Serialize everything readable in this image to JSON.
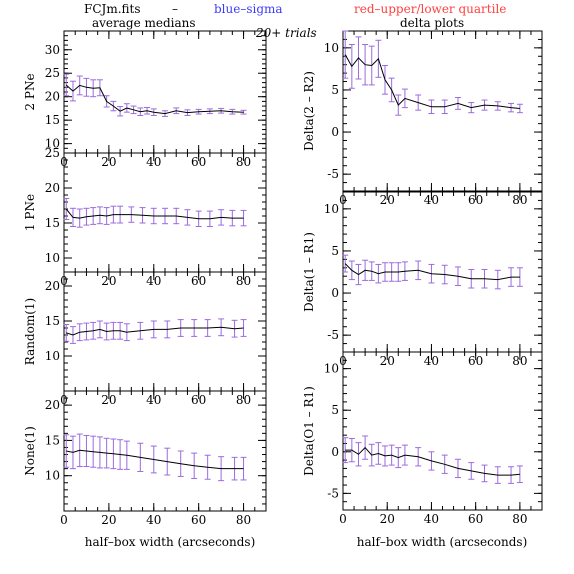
{
  "header": {
    "filename": "FCJm.fits",
    "dash": "–",
    "legend_blue": "blue–sigma",
    "legend_red": "red–upper/lower quartile",
    "left_title": "average medians",
    "trials": "20+ trials",
    "right_title": "delta plots"
  },
  "colors": {
    "line": "#000000",
    "error_bar": "#9b6bde",
    "blue": "#3b3bff",
    "red": "#ff4040"
  },
  "chart_data": [
    {
      "type": "line",
      "ylabel": "2 PNe",
      "xlim": [
        0,
        90
      ],
      "ylim": [
        8,
        34
      ],
      "yticks": [
        10,
        15,
        20,
        25,
        30
      ],
      "xticks": [
        0,
        20,
        40,
        60,
        80
      ],
      "x": [
        1,
        4,
        7,
        10,
        13,
        16,
        19,
        22,
        25,
        28,
        31,
        34,
        37,
        40,
        45,
        50,
        55,
        60,
        65,
        70,
        75,
        80
      ],
      "values": [
        22.5,
        21.2,
        22.4,
        22.0,
        21.8,
        21.9,
        19.0,
        18.0,
        16.9,
        17.6,
        17.2,
        16.8,
        17.0,
        16.7,
        16.4,
        17.0,
        16.6,
        16.8,
        16.9,
        17.0,
        16.8,
        16.7
      ],
      "errors": [
        2.3,
        2.1,
        2.0,
        1.9,
        1.8,
        1.7,
        1.2,
        1.0,
        1.0,
        0.9,
        0.8,
        0.8,
        0.7,
        0.7,
        0.6,
        0.6,
        0.6,
        0.5,
        0.5,
        0.5,
        0.5,
        0.4
      ]
    },
    {
      "type": "line",
      "ylabel": "Delta(2 – R2)",
      "xlim": [
        0,
        90
      ],
      "ylim": [
        -7,
        12
      ],
      "yticks": [
        -5,
        0,
        5,
        10
      ],
      "xticks": [
        0,
        20,
        40,
        60,
        80
      ],
      "x": [
        1,
        4,
        7,
        10,
        13,
        16,
        19,
        22,
        25,
        28,
        34,
        40,
        46,
        52,
        58,
        64,
        70,
        76,
        80
      ],
      "values": [
        9.2,
        7.8,
        8.8,
        8.0,
        7.9,
        8.7,
        6.2,
        5.0,
        3.2,
        4.0,
        3.5,
        3.0,
        3.0,
        3.4,
        2.9,
        3.2,
        3.1,
        2.9,
        2.8
      ],
      "errors": [
        2.8,
        2.6,
        2.5,
        2.4,
        2.3,
        2.2,
        1.7,
        1.4,
        1.2,
        1.1,
        0.9,
        0.8,
        0.8,
        0.7,
        0.6,
        0.6,
        0.5,
        0.5,
        0.5
      ]
    },
    {
      "type": "line",
      "ylabel": "1 PNe",
      "xlim": [
        0,
        90
      ],
      "ylim": [
        8,
        25
      ],
      "yticks": [
        10,
        15,
        20,
        25
      ],
      "xticks": [
        0,
        20,
        40,
        60,
        80
      ],
      "x": [
        1,
        4,
        7,
        10,
        13,
        16,
        19,
        22,
        25,
        30,
        35,
        40,
        45,
        50,
        55,
        60,
        65,
        70,
        75,
        80
      ],
      "values": [
        17.0,
        15.8,
        15.7,
        15.9,
        16.0,
        16.1,
        16.0,
        16.2,
        16.2,
        16.2,
        16.1,
        16.0,
        16.0,
        16.0,
        15.8,
        15.6,
        15.6,
        15.8,
        15.7,
        15.7
      ],
      "errors": [
        1.5,
        1.3,
        1.3,
        1.2,
        1.2,
        1.2,
        1.2,
        1.2,
        1.2,
        1.1,
        1.1,
        1.1,
        1.1,
        1.1,
        1.1,
        1.1,
        1.1,
        1.1,
        1.1,
        1.1
      ]
    },
    {
      "type": "line",
      "ylabel": "Delta(1 – R1)",
      "xlim": [
        0,
        90
      ],
      "ylim": [
        -7,
        12
      ],
      "yticks": [
        -5,
        0,
        5,
        10
      ],
      "xticks": [
        0,
        20,
        40,
        60,
        80
      ],
      "x": [
        1,
        4,
        7,
        10,
        13,
        16,
        19,
        22,
        25,
        28,
        34,
        40,
        46,
        52,
        58,
        64,
        70,
        76,
        80
      ],
      "values": [
        3.5,
        2.7,
        2.2,
        2.7,
        2.6,
        2.3,
        2.5,
        2.5,
        2.5,
        2.6,
        2.7,
        2.3,
        2.2,
        2.0,
        1.7,
        1.7,
        1.6,
        1.9,
        1.9
      ],
      "errors": [
        1.0,
        1.1,
        1.2,
        1.2,
        1.1,
        1.1,
        1.1,
        1.1,
        1.1,
        1.1,
        1.1,
        1.1,
        1.1,
        1.1,
        1.1,
        1.1,
        1.1,
        1.1,
        1.1
      ]
    },
    {
      "type": "line",
      "ylabel": "Random(1)",
      "xlim": [
        0,
        90
      ],
      "ylim": [
        5,
        22
      ],
      "yticks": [
        10,
        15,
        20
      ],
      "xticks": [
        0,
        20,
        40,
        60,
        80
      ],
      "x": [
        1,
        4,
        7,
        10,
        13,
        16,
        19,
        22,
        25,
        28,
        34,
        40,
        46,
        52,
        58,
        64,
        70,
        76,
        80
      ],
      "values": [
        13.3,
        13.0,
        13.4,
        13.5,
        13.6,
        13.8,
        13.5,
        13.6,
        13.6,
        13.4,
        13.6,
        13.8,
        13.8,
        14.0,
        14.0,
        14.0,
        14.1,
        13.9,
        14.0
      ],
      "errors": [
        1.2,
        1.2,
        1.2,
        1.2,
        1.2,
        1.2,
        1.2,
        1.2,
        1.2,
        1.2,
        1.2,
        1.2,
        1.2,
        1.2,
        1.2,
        1.2,
        1.2,
        1.2,
        1.2
      ]
    },
    {
      "type": "line",
      "ylabel": "Delta(O1 – R1)",
      "xlim": [
        0,
        90
      ],
      "ylim": [
        -7,
        12
      ],
      "yticks": [
        -5,
        0,
        5,
        10
      ],
      "xticks": [
        0,
        20,
        40,
        60,
        80
      ],
      "x": [
        1,
        4,
        7,
        10,
        13,
        16,
        19,
        22,
        25,
        28,
        34,
        40,
        46,
        52,
        58,
        64,
        70,
        76,
        80
      ],
      "values": [
        0.2,
        0.2,
        -0.3,
        0.5,
        -0.4,
        -0.2,
        -0.5,
        -0.4,
        -0.7,
        -0.4,
        -0.6,
        -1.1,
        -1.5,
        -2.0,
        -2.3,
        -2.6,
        -2.8,
        -2.8,
        -2.7
      ],
      "errors": [
        1.5,
        1.4,
        1.4,
        1.4,
        1.3,
        1.3,
        1.2,
        1.2,
        1.2,
        1.2,
        1.1,
        1.1,
        1.1,
        1.1,
        1.0,
        1.0,
        1.0,
        1.0,
        1.0
      ]
    },
    {
      "type": "line",
      "ylabel": "None(1)",
      "xlim": [
        0,
        90
      ],
      "ylim": [
        5,
        22
      ],
      "yticks": [
        10,
        15,
        20
      ],
      "xticks": [
        0,
        20,
        40,
        60,
        80
      ],
      "x": [
        1,
        4,
        7,
        10,
        13,
        16,
        19,
        22,
        25,
        28,
        34,
        40,
        46,
        52,
        58,
        64,
        70,
        76,
        80
      ],
      "values": [
        13.5,
        13.3,
        13.6,
        13.5,
        13.4,
        13.3,
        13.2,
        13.1,
        13.0,
        12.9,
        12.6,
        12.3,
        12.0,
        11.7,
        11.4,
        11.2,
        11.0,
        11.0,
        11.0
      ],
      "errors": [
        2.3,
        2.3,
        2.3,
        2.2,
        2.2,
        2.2,
        2.1,
        2.1,
        2.1,
        2.0,
        2.0,
        1.9,
        1.9,
        1.8,
        1.8,
        1.7,
        1.7,
        1.6,
        1.6
      ]
    },
    {
      "type": "line",
      "ylabel": "Delta(O1 – R1)",
      "xlim": [
        0,
        90
      ],
      "ylim": [
        -7,
        12
      ],
      "yticks": [
        -5,
        0,
        5,
        10
      ],
      "xticks": [
        0,
        20,
        40,
        60,
        80
      ],
      "x": [],
      "values": [],
      "errors": [],
      "_hidden": true
    }
  ],
  "xlabel": "half–box width (arcseconds)"
}
